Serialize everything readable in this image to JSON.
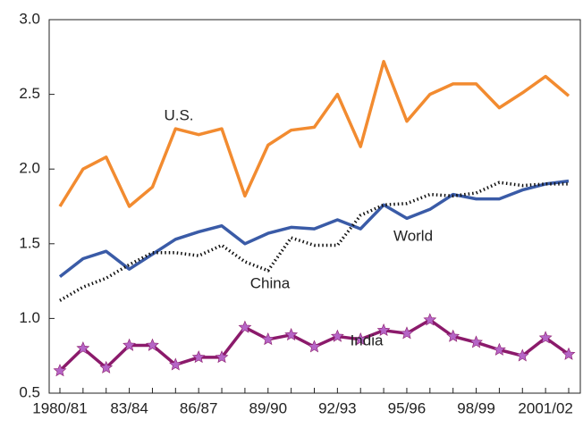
{
  "chart_data": {
    "type": "line",
    "categories": [
      "1980/81",
      null,
      null,
      "83/84",
      null,
      null,
      "86/87",
      null,
      null,
      "89/90",
      null,
      null,
      "92/93",
      null,
      null,
      "95/96",
      null,
      null,
      "98/99",
      null,
      null,
      "2001/02",
      null
    ],
    "ylim": [
      0.5,
      3.0
    ],
    "yticks": [
      0.5,
      {
        "value": 1,
        "label": "1.0"
      },
      1.5,
      {
        "value": 2,
        "label": "2.0"
      },
      2.5,
      {
        "value": 3,
        "label": "3.0"
      }
    ],
    "series": [
      {
        "name": "U.S.",
        "color": "#f28b30",
        "values": [
          1.75,
          2.0,
          2.08,
          1.75,
          1.88,
          2.27,
          2.23,
          2.27,
          1.82,
          2.16,
          2.26,
          2.28,
          2.5,
          2.15,
          2.72,
          2.32,
          2.5,
          2.57,
          2.57,
          2.41,
          2.51,
          2.62,
          2.49
        ]
      },
      {
        "name": "World",
        "color": "#3a5ba7",
        "values": [
          1.28,
          1.4,
          1.45,
          1.33,
          1.43,
          1.53,
          1.58,
          1.62,
          1.5,
          1.57,
          1.61,
          1.6,
          1.66,
          1.6,
          1.76,
          1.67,
          1.73,
          1.83,
          1.8,
          1.8,
          1.86,
          1.9,
          1.92
        ]
      },
      {
        "name": "China",
        "color": "#111111",
        "dash": "dotted",
        "values": [
          1.12,
          1.21,
          1.27,
          1.36,
          1.44,
          1.44,
          1.42,
          1.49,
          1.38,
          1.32,
          1.54,
          1.49,
          1.49,
          1.69,
          1.76,
          1.77,
          1.83,
          1.82,
          1.84,
          1.91,
          1.89,
          1.9,
          1.9
        ]
      },
      {
        "name": "India",
        "color": "#8b1a6b",
        "marker": "star",
        "marker_color": "#b565c6",
        "values": [
          0.65,
          0.8,
          0.67,
          0.82,
          0.82,
          0.69,
          0.74,
          0.74,
          0.94,
          0.86,
          0.89,
          0.81,
          0.88,
          0.86,
          0.92,
          0.9,
          0.99,
          0.88,
          0.84,
          0.79,
          0.75,
          0.87,
          0.76
        ]
      }
    ]
  }
}
